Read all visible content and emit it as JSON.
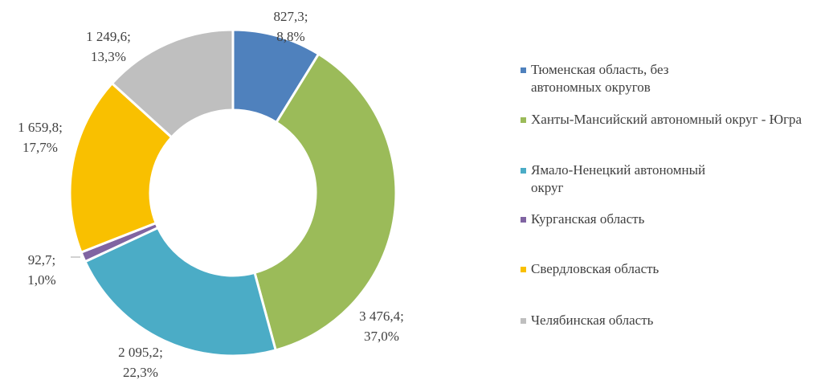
{
  "chart_data": {
    "type": "pie",
    "categories": [
      "Тюменская область, без автономных округов",
      "Ханты-Мансийский автономный округ - Югра",
      "Ямало-Ненецкий автономный округ",
      "Курганская область",
      "Свердловская область",
      "Челябинская область"
    ],
    "values": [
      827.3,
      3476.4,
      2095.2,
      92.7,
      1659.8,
      1249.6
    ],
    "value_labels": [
      "827,3;",
      "3 476,4;",
      "2 095,2;",
      "92,7;",
      "1 659,8;",
      "1 249,6;"
    ],
    "percents": [
      8.8,
      37.0,
      22.3,
      1.0,
      17.7,
      13.3
    ],
    "percent_labels": [
      "8,8%",
      "37,0%",
      "22,3%",
      "1,0%",
      "17,7%",
      "13,3%"
    ],
    "colors": [
      "#4f81bd",
      "#9bbb59",
      "#4bacc6",
      "#8064a2",
      "#f9c000",
      "#bfbfbf"
    ],
    "donut": true,
    "legend": "right"
  }
}
